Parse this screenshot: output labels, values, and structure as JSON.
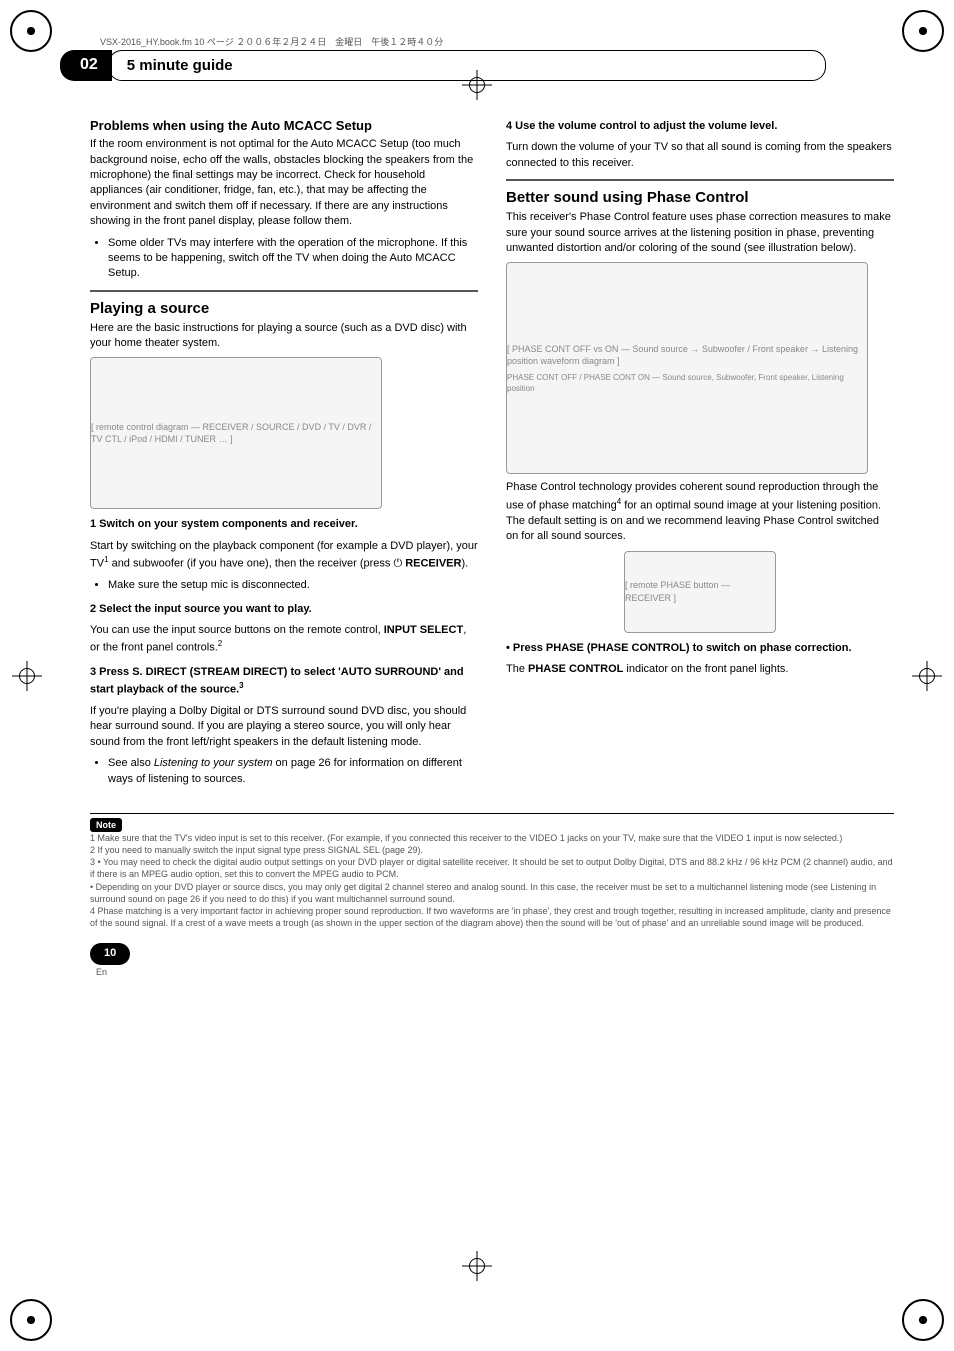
{
  "header": {
    "running_text": "VSX-2016_HY.book.fm 10 ページ ２００６年２月２４日　金曜日　午後１２時４０分"
  },
  "chapter": {
    "number": "02",
    "title": "5 minute guide"
  },
  "left": {
    "problems_heading": "Problems when using the Auto MCACC Setup",
    "problems_body": "If the room environment is not optimal for the Auto MCACC Setup (too much background noise, echo off the walls, obstacles blocking the speakers from the microphone) the final settings may be incorrect. Check for household appliances (air conditioner, fridge, fan, etc.), that may be affecting the environment and switch them off if necessary. If there are any instructions showing in the front panel display, please follow them.",
    "problems_bullet": "Some older TVs may interfere with the operation of the microphone. If this seems to be happening, switch off the TV when doing the Auto MCACC Setup.",
    "playing_heading": "Playing a source",
    "playing_intro": "Here are the basic instructions for playing a source (such as a DVD disc) with your home theater system.",
    "fig1_placeholder": "[ remote control diagram — RECEIVER / SOURCE / DVD / TV / DVR / TV CTL / iPod / HDMI / TUNER … ]",
    "step1_title": "1   Switch on your system components and receiver.",
    "step1_body_a": "Start by switching on the playback component (for example a DVD player), your TV",
    "step1_body_b": " and subwoofer (if you have one), then the receiver (press ",
    "step1_body_c": " RECEIVER",
    "step1_body_d": ").",
    "step1_bullet": "Make sure the setup mic is disconnected.",
    "step2_title": "2   Select the input source you want to play.",
    "step2_body_a": "You can use the input source buttons on the remote control, ",
    "step2_body_b": "INPUT SELECT",
    "step2_body_c": ", or the front panel controls.",
    "step3_title": "3   Press S. DIRECT (STREAM DIRECT) to select 'AUTO SURROUND' and start playback of the source.",
    "step3_body": "If you're playing a Dolby Digital or DTS surround sound DVD disc, you should hear surround sound. If you are playing a stereo source, you will only hear sound from the front left/right speakers in the default listening mode.",
    "step3_bullet_a": "See also ",
    "step3_bullet_b": "Listening to your system",
    "step3_bullet_c": " on page 26 for information on different ways of listening to sources."
  },
  "right": {
    "step4_title": "4   Use the volume control to adjust the volume level.",
    "step4_body": "Turn down the volume of your TV so that all sound is coming from the speakers connected to this receiver.",
    "better_heading": "Better sound using Phase Control",
    "better_body": "This receiver's Phase Control feature uses phase correction measures to make sure your sound source arrives at the listening position in phase, preventing unwanted distortion and/or coloring of the sound (see illustration below).",
    "fig2_placeholder": "[ PHASE CONT OFF vs ON — Sound source → Subwoofer / Front speaker → Listening position waveform diagram ]",
    "fig2_labels": {
      "front_speaker": "Front speaker",
      "listening_position": "Listening position",
      "sound_source": "Sound source",
      "subwoofer": "Subwoofer",
      "off": "PHASE CONT OFF",
      "on": "PHASE CONT ON"
    },
    "after_fig_a": "Phase Control technology provides coherent sound reproduction through the use of phase matching",
    "after_fig_b": " for an optimal sound image at your listening position. The default setting is on and we recommend leaving Phase Control switched on for all sound sources.",
    "fig3_placeholder": "[ remote PHASE button — RECEIVER ]",
    "phase_step": "•   Press PHASE (PHASE CONTROL) to switch on phase correction.",
    "phase_body_a": "The ",
    "phase_body_b": "PHASE CONTROL",
    "phase_body_c": " indicator on the front panel lights."
  },
  "notes": {
    "label": "Note",
    "n1": "1 Make sure that the TV's video input is set to this receiver. (For example, if you connected this receiver to the VIDEO 1 jacks on your TV, make sure that the VIDEO 1 input is now selected.)",
    "n2": "2 If you need to manually switch the input signal type press SIGNAL SEL (page 29).",
    "n3a": "3 • You may need to check the digital audio output settings on your DVD player or digital satellite receiver. It should be set to output Dolby Digital, DTS and 88.2 kHz / 96 kHz PCM (2 channel) audio, and if there is an MPEG audio option, set this to convert the MPEG audio to PCM.",
    "n3b": "• Depending on your DVD player or source discs, you may only get digital 2 channel stereo and analog sound. In this case, the receiver must be set to a multichannel listening mode (see Listening in surround sound on page 26 if you need to do this) if you want multichannel surround sound.",
    "n4": "4 Phase matching is a very important factor in achieving proper sound reproduction. If two waveforms are 'in phase', they crest and trough together, resulting in increased amplitude, clarity and presence of the sound signal. If a crest of a wave meets a trough (as shown in the upper section of the diagram above) then the sound will be 'out of phase' and an unreliable sound image will be produced."
  },
  "footer": {
    "page": "10",
    "lang": "En"
  },
  "style": {
    "accent_color": "#000000",
    "body_text_color": "#000000",
    "muted_text_color": "#555555",
    "figure_bg": "#f5f5f5",
    "figure_border": "#999999"
  }
}
